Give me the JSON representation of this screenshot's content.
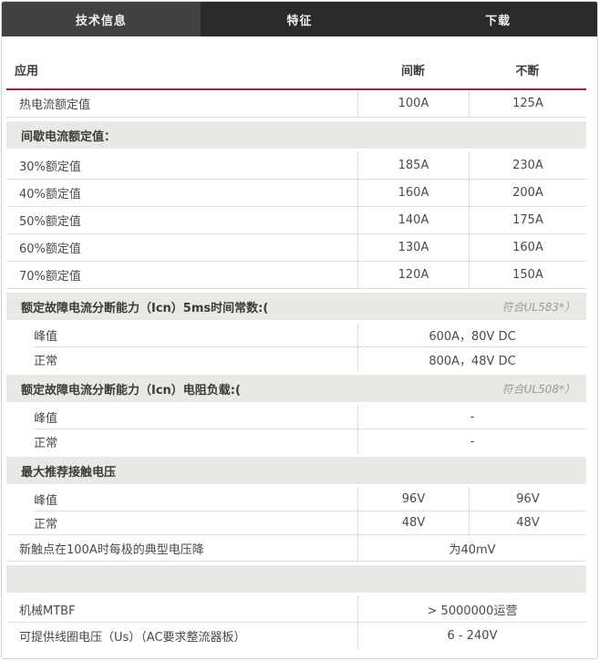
{
  "tabs": [
    {
      "label": "技术信息",
      "active": true
    },
    {
      "label": "特征",
      "active": false
    },
    {
      "label": "下载",
      "active": false
    }
  ],
  "colors": {
    "accent_line": "#9d1c47",
    "tab_active_bg": "#3f4143",
    "tab_inactive_bg": "#2a292b",
    "section_bg": "#e9e8e4"
  },
  "table": {
    "header": {
      "application": "应用",
      "intermittent": "间断",
      "continuous": "不断"
    },
    "rows": [
      {
        "type": "data2",
        "label": "热电流额定值",
        "v1": "100A",
        "v2": "125A",
        "border": true
      },
      {
        "type": "section",
        "label": "间歇电流额定值：",
        "note": ""
      },
      {
        "type": "data2",
        "label": "30%额定值",
        "v1": "185A",
        "v2": "230A",
        "border": true
      },
      {
        "type": "data2",
        "label": "40%额定值",
        "v1": "160A",
        "v2": "200A",
        "border": true
      },
      {
        "type": "data2",
        "label": "50%额定值",
        "v1": "140A",
        "v2": "175A",
        "border": true
      },
      {
        "type": "data2",
        "label": "60%额定值",
        "v1": "130A",
        "v2": "160A",
        "border": true
      },
      {
        "type": "data2",
        "label": "70%额定值",
        "v1": "120A",
        "v2": "150A",
        "border": true
      },
      {
        "type": "section",
        "label": "额定故障电流分断能力（Icn）5ms时间常数:(",
        "note": "符合UL583*）"
      },
      {
        "type": "subspan",
        "label": "峰值",
        "value": "600A，80V DC",
        "border": true,
        "border_indent": true
      },
      {
        "type": "subspan",
        "label": "正常",
        "value": "800A，48V DC",
        "border": false
      },
      {
        "type": "section",
        "label": "额定故障电流分断能力（Icn）电阻负载:(",
        "note": "符合UL508*）"
      },
      {
        "type": "subspan",
        "label": "峰值",
        "value": "-",
        "border": true,
        "border_indent": true
      },
      {
        "type": "subspan",
        "label": "正常",
        "value": "-",
        "border": false
      },
      {
        "type": "section",
        "label": "最大推荐接触电压",
        "note": ""
      },
      {
        "type": "sub2",
        "label": "峰值",
        "v1": "96V",
        "v2": "96V",
        "border": true,
        "border_indent": true
      },
      {
        "type": "sub2",
        "label": "正常",
        "v1": "48V",
        "v2": "48V",
        "border": true
      },
      {
        "type": "span",
        "label": "新触点在100A时每极的典型电压降",
        "value": "为40mV",
        "border": true
      },
      {
        "type": "section",
        "label": "",
        "note": ""
      },
      {
        "type": "span",
        "label": "机械MTBF",
        "value": "> 5000000运营",
        "border": true
      },
      {
        "type": "span",
        "label": "可提供线圈电压（Us）（AC要求整流器板）",
        "value": "6 - 240V",
        "border": false
      }
    ]
  }
}
